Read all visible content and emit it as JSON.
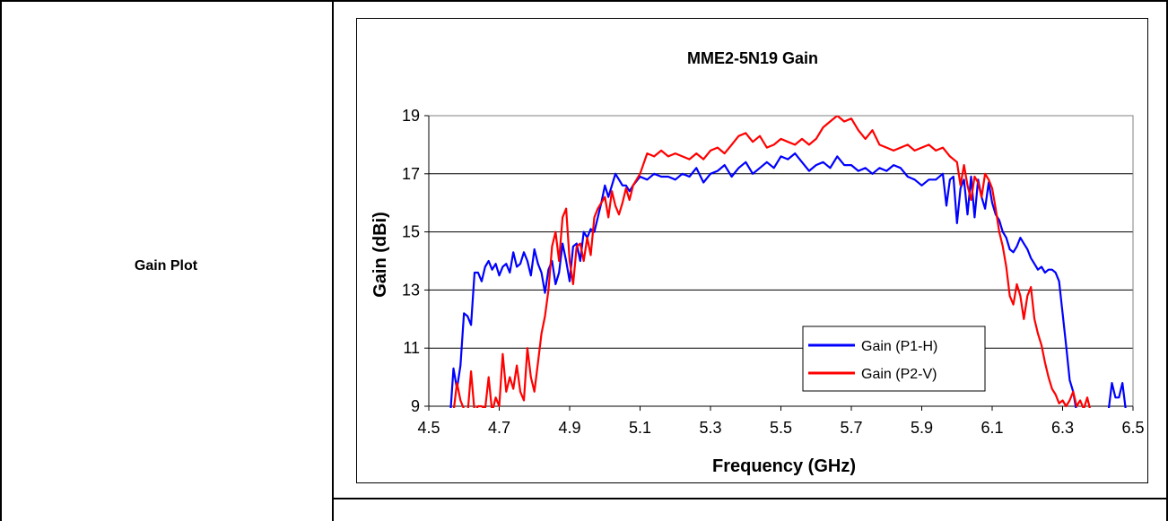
{
  "row": {
    "label": "Gain Plot"
  },
  "chart_data": {
    "type": "line",
    "title": "MME2-5N19 Gain",
    "xlabel": "Frequency (GHz)",
    "ylabel": "Gain (dBi)",
    "xlim": [
      4.5,
      6.5
    ],
    "ylim": [
      9,
      19
    ],
    "xticks": [
      "4.5",
      "4.7",
      "4.9",
      "5.1",
      "5.3",
      "5.5",
      "5.7",
      "5.9",
      "6.1",
      "6.3",
      "6.5"
    ],
    "yticks": [
      "9",
      "11",
      "13",
      "15",
      "17",
      "19"
    ],
    "grid": "horizontal",
    "legend_position": "lower-right",
    "series": [
      {
        "name": "Gain (P1-H)",
        "color": "#0000ff",
        "points": [
          [
            4.56,
            8.5
          ],
          [
            4.57,
            10.3
          ],
          [
            4.58,
            9.6
          ],
          [
            4.59,
            10.4
          ],
          [
            4.6,
            12.2
          ],
          [
            4.61,
            12.1
          ],
          [
            4.62,
            11.8
          ],
          [
            4.63,
            13.6
          ],
          [
            4.64,
            13.6
          ],
          [
            4.65,
            13.3
          ],
          [
            4.66,
            13.8
          ],
          [
            4.67,
            14.0
          ],
          [
            4.68,
            13.7
          ],
          [
            4.69,
            13.9
          ],
          [
            4.7,
            13.5
          ],
          [
            4.71,
            13.8
          ],
          [
            4.72,
            13.9
          ],
          [
            4.73,
            13.6
          ],
          [
            4.74,
            14.3
          ],
          [
            4.75,
            13.8
          ],
          [
            4.76,
            13.9
          ],
          [
            4.77,
            14.3
          ],
          [
            4.78,
            14.0
          ],
          [
            4.79,
            13.5
          ],
          [
            4.8,
            14.4
          ],
          [
            4.81,
            13.9
          ],
          [
            4.82,
            13.6
          ],
          [
            4.83,
            12.9
          ],
          [
            4.84,
            13.7
          ],
          [
            4.85,
            14.0
          ],
          [
            4.86,
            13.2
          ],
          [
            4.87,
            13.6
          ],
          [
            4.88,
            14.6
          ],
          [
            4.89,
            14.0
          ],
          [
            4.9,
            13.3
          ],
          [
            4.91,
            14.5
          ],
          [
            4.92,
            14.6
          ],
          [
            4.93,
            14.0
          ],
          [
            4.94,
            15.0
          ],
          [
            4.95,
            14.8
          ],
          [
            4.96,
            15.1
          ],
          [
            4.97,
            15.0
          ],
          [
            4.98,
            15.5
          ],
          [
            4.99,
            16.0
          ],
          [
            5.0,
            16.6
          ],
          [
            5.01,
            16.2
          ],
          [
            5.02,
            16.6
          ],
          [
            5.03,
            17.0
          ],
          [
            5.04,
            16.8
          ],
          [
            5.05,
            16.6
          ],
          [
            5.06,
            16.6
          ],
          [
            5.07,
            16.4
          ],
          [
            5.08,
            16.6
          ],
          [
            5.1,
            16.9
          ],
          [
            5.12,
            16.8
          ],
          [
            5.14,
            17.0
          ],
          [
            5.16,
            16.9
          ],
          [
            5.18,
            16.9
          ],
          [
            5.2,
            16.8
          ],
          [
            5.22,
            17.0
          ],
          [
            5.24,
            16.9
          ],
          [
            5.26,
            17.2
          ],
          [
            5.28,
            16.7
          ],
          [
            5.3,
            17.0
          ],
          [
            5.32,
            17.1
          ],
          [
            5.34,
            17.3
          ],
          [
            5.36,
            16.9
          ],
          [
            5.38,
            17.2
          ],
          [
            5.4,
            17.4
          ],
          [
            5.42,
            17.0
          ],
          [
            5.44,
            17.2
          ],
          [
            5.46,
            17.4
          ],
          [
            5.48,
            17.2
          ],
          [
            5.5,
            17.6
          ],
          [
            5.52,
            17.5
          ],
          [
            5.54,
            17.7
          ],
          [
            5.56,
            17.4
          ],
          [
            5.58,
            17.1
          ],
          [
            5.6,
            17.3
          ],
          [
            5.62,
            17.4
          ],
          [
            5.64,
            17.2
          ],
          [
            5.66,
            17.6
          ],
          [
            5.68,
            17.3
          ],
          [
            5.7,
            17.3
          ],
          [
            5.72,
            17.1
          ],
          [
            5.74,
            17.2
          ],
          [
            5.76,
            17.0
          ],
          [
            5.78,
            17.2
          ],
          [
            5.8,
            17.1
          ],
          [
            5.82,
            17.3
          ],
          [
            5.84,
            17.2
          ],
          [
            5.86,
            16.9
          ],
          [
            5.88,
            16.8
          ],
          [
            5.9,
            16.6
          ],
          [
            5.92,
            16.8
          ],
          [
            5.94,
            16.8
          ],
          [
            5.96,
            17.0
          ],
          [
            5.97,
            15.9
          ],
          [
            5.98,
            16.8
          ],
          [
            5.99,
            16.9
          ],
          [
            6.0,
            15.3
          ],
          [
            6.01,
            16.5
          ],
          [
            6.02,
            16.8
          ],
          [
            6.03,
            15.6
          ],
          [
            6.04,
            16.9
          ],
          [
            6.05,
            15.5
          ],
          [
            6.06,
            16.8
          ],
          [
            6.07,
            16.2
          ],
          [
            6.08,
            15.8
          ],
          [
            6.09,
            16.7
          ],
          [
            6.1,
            16.0
          ],
          [
            6.11,
            15.6
          ],
          [
            6.12,
            15.4
          ],
          [
            6.13,
            15.0
          ],
          [
            6.14,
            14.8
          ],
          [
            6.15,
            14.4
          ],
          [
            6.16,
            14.3
          ],
          [
            6.17,
            14.5
          ],
          [
            6.18,
            14.8
          ],
          [
            6.19,
            14.6
          ],
          [
            6.2,
            14.4
          ],
          [
            6.21,
            14.1
          ],
          [
            6.22,
            13.9
          ],
          [
            6.23,
            13.7
          ],
          [
            6.24,
            13.8
          ],
          [
            6.25,
            13.6
          ],
          [
            6.26,
            13.7
          ],
          [
            6.27,
            13.7
          ],
          [
            6.28,
            13.6
          ],
          [
            6.29,
            13.3
          ],
          [
            6.3,
            12.2
          ],
          [
            6.31,
            11.1
          ],
          [
            6.32,
            9.9
          ],
          [
            6.33,
            9.5
          ],
          [
            6.34,
            8.8
          ],
          [
            6.43,
            8.8
          ],
          [
            6.44,
            9.8
          ],
          [
            6.45,
            9.3
          ],
          [
            6.46,
            9.3
          ],
          [
            6.47,
            9.8
          ],
          [
            6.48,
            8.8
          ]
        ]
      },
      {
        "name": "Gain (P2-V)",
        "color": "#ff0000",
        "points": [
          [
            4.57,
            8.8
          ],
          [
            4.58,
            9.8
          ],
          [
            4.59,
            9.2
          ],
          [
            4.6,
            8.9
          ],
          [
            4.61,
            8.7
          ],
          [
            4.62,
            10.2
          ],
          [
            4.63,
            8.8
          ],
          [
            4.64,
            9.0
          ],
          [
            4.65,
            9.0
          ],
          [
            4.66,
            8.9
          ],
          [
            4.67,
            10.0
          ],
          [
            4.68,
            8.8
          ],
          [
            4.69,
            9.3
          ],
          [
            4.7,
            9.0
          ],
          [
            4.71,
            10.8
          ],
          [
            4.72,
            9.5
          ],
          [
            4.73,
            10.0
          ],
          [
            4.74,
            9.6
          ],
          [
            4.75,
            10.4
          ],
          [
            4.76,
            9.5
          ],
          [
            4.77,
            9.2
          ],
          [
            4.78,
            11.0
          ],
          [
            4.79,
            10.0
          ],
          [
            4.8,
            9.5
          ],
          [
            4.81,
            10.5
          ],
          [
            4.82,
            11.5
          ],
          [
            4.83,
            12.1
          ],
          [
            4.84,
            13.0
          ],
          [
            4.85,
            14.5
          ],
          [
            4.86,
            15.0
          ],
          [
            4.87,
            14.0
          ],
          [
            4.88,
            15.5
          ],
          [
            4.89,
            15.8
          ],
          [
            4.9,
            14.0
          ],
          [
            4.91,
            13.2
          ],
          [
            4.92,
            14.5
          ],
          [
            4.93,
            14.6
          ],
          [
            4.94,
            14.0
          ],
          [
            4.95,
            14.8
          ],
          [
            4.96,
            14.2
          ],
          [
            4.97,
            15.5
          ],
          [
            4.98,
            15.8
          ],
          [
            4.99,
            16.0
          ],
          [
            5.0,
            16.2
          ],
          [
            5.01,
            15.5
          ],
          [
            5.02,
            16.4
          ],
          [
            5.03,
            15.9
          ],
          [
            5.04,
            15.6
          ],
          [
            5.05,
            16.0
          ],
          [
            5.06,
            16.5
          ],
          [
            5.07,
            16.1
          ],
          [
            5.08,
            16.6
          ],
          [
            5.1,
            17.0
          ],
          [
            5.12,
            17.7
          ],
          [
            5.14,
            17.6
          ],
          [
            5.16,
            17.8
          ],
          [
            5.18,
            17.6
          ],
          [
            5.2,
            17.7
          ],
          [
            5.22,
            17.6
          ],
          [
            5.24,
            17.5
          ],
          [
            5.26,
            17.7
          ],
          [
            5.28,
            17.5
          ],
          [
            5.3,
            17.8
          ],
          [
            5.32,
            17.9
          ],
          [
            5.34,
            17.7
          ],
          [
            5.36,
            18.0
          ],
          [
            5.38,
            18.3
          ],
          [
            5.4,
            18.4
          ],
          [
            5.42,
            18.1
          ],
          [
            5.44,
            18.3
          ],
          [
            5.46,
            17.9
          ],
          [
            5.48,
            18.0
          ],
          [
            5.5,
            18.2
          ],
          [
            5.52,
            18.1
          ],
          [
            5.54,
            18.0
          ],
          [
            5.56,
            18.2
          ],
          [
            5.58,
            18.0
          ],
          [
            5.6,
            18.2
          ],
          [
            5.62,
            18.6
          ],
          [
            5.64,
            18.8
          ],
          [
            5.66,
            19.0
          ],
          [
            5.68,
            18.8
          ],
          [
            5.7,
            18.9
          ],
          [
            5.72,
            18.5
          ],
          [
            5.74,
            18.2
          ],
          [
            5.76,
            18.5
          ],
          [
            5.78,
            18.0
          ],
          [
            5.8,
            17.9
          ],
          [
            5.82,
            17.8
          ],
          [
            5.84,
            17.9
          ],
          [
            5.86,
            18.0
          ],
          [
            5.88,
            17.8
          ],
          [
            5.9,
            17.9
          ],
          [
            5.92,
            18.0
          ],
          [
            5.94,
            17.8
          ],
          [
            5.96,
            17.9
          ],
          [
            5.98,
            17.6
          ],
          [
            6.0,
            17.4
          ],
          [
            6.01,
            16.6
          ],
          [
            6.02,
            17.3
          ],
          [
            6.03,
            16.6
          ],
          [
            6.04,
            16.1
          ],
          [
            6.05,
            16.9
          ],
          [
            6.06,
            16.7
          ],
          [
            6.07,
            16.2
          ],
          [
            6.08,
            17.0
          ],
          [
            6.09,
            16.8
          ],
          [
            6.1,
            16.5
          ],
          [
            6.11,
            15.8
          ],
          [
            6.12,
            15.0
          ],
          [
            6.13,
            14.5
          ],
          [
            6.14,
            13.8
          ],
          [
            6.15,
            12.8
          ],
          [
            6.16,
            12.5
          ],
          [
            6.17,
            13.2
          ],
          [
            6.18,
            12.8
          ],
          [
            6.19,
            12.0
          ],
          [
            6.2,
            12.8
          ],
          [
            6.21,
            13.1
          ],
          [
            6.22,
            12.0
          ],
          [
            6.23,
            11.5
          ],
          [
            6.24,
            11.1
          ],
          [
            6.25,
            10.5
          ],
          [
            6.26,
            10.0
          ],
          [
            6.27,
            9.6
          ],
          [
            6.28,
            9.4
          ],
          [
            6.29,
            9.1
          ],
          [
            6.3,
            9.2
          ],
          [
            6.31,
            9.0
          ],
          [
            6.32,
            9.2
          ],
          [
            6.33,
            9.5
          ],
          [
            6.34,
            9.0
          ],
          [
            6.35,
            9.2
          ],
          [
            6.36,
            8.9
          ],
          [
            6.37,
            9.3
          ],
          [
            6.38,
            8.8
          ]
        ]
      }
    ]
  }
}
